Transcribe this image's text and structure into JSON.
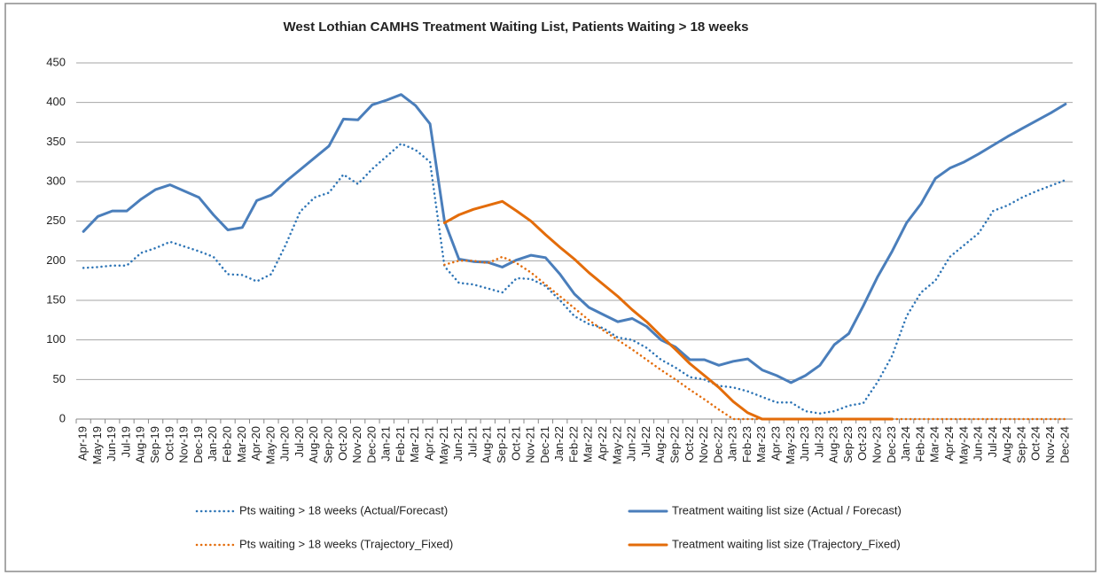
{
  "chart_data": {
    "type": "line",
    "title": "West Lothian CAMHS Treatment Waiting List, Patients Waiting > 18 weeks",
    "categories": [
      "Apr-19",
      "May-19",
      "Jun-19",
      "Jul-19",
      "Aug-19",
      "Sep-19",
      "Oct-19",
      "Nov-19",
      "Dec-19",
      "Jan-20",
      "Feb-20",
      "Mar-20",
      "Apr-20",
      "May-20",
      "Jun-20",
      "Jul-20",
      "Aug-20",
      "Sep-20",
      "Oct-20",
      "Nov-20",
      "Dec-20",
      "Jan-21",
      "Feb-21",
      "Mar-21",
      "Apr-21",
      "May-21",
      "Jun-21",
      "Jul-21",
      "Aug-21",
      "Sep-21",
      "Oct-21",
      "Nov-21",
      "Dec-21",
      "Jan-22",
      "Feb-22",
      "Mar-22",
      "Apr-22",
      "May-22",
      "Jun-22",
      "Jul-22",
      "Aug-22",
      "Sep-22",
      "Oct-22",
      "Nov-22",
      "Dec-22",
      "Jan-23",
      "Feb-23",
      "Mar-23",
      "Apr-23",
      "May-23",
      "Jun-23",
      "Jul-23",
      "Aug-23",
      "Sep-23",
      "Oct-23",
      "Nov-23",
      "Dec-23",
      "Jan-24",
      "Feb-24",
      "Mar-24",
      "Apr-24",
      "May-24",
      "Jun-24",
      "Jul-24",
      "Aug-24",
      "Sep-24",
      "Oct-24",
      "Nov-24",
      "Dec-24"
    ],
    "series": [
      {
        "name": "Pts waiting > 18 weeks (Actual/Forecast)",
        "color": "#2e75b6",
        "style": "dotted",
        "values": [
          191,
          192,
          194,
          194,
          210,
          216,
          224,
          218,
          212,
          205,
          183,
          182,
          174,
          183,
          220,
          262,
          280,
          286,
          309,
          297,
          316,
          332,
          348,
          340,
          325,
          193,
          172,
          170,
          165,
          160,
          178,
          177,
          168,
          150,
          130,
          120,
          115,
          103,
          100,
          90,
          75,
          65,
          53,
          50,
          42,
          40,
          35,
          28,
          21,
          21,
          10,
          7,
          10,
          17,
          20,
          47,
          80,
          130,
          160,
          175,
          205,
          220,
          235,
          263,
          270,
          280,
          288,
          295,
          302
        ]
      },
      {
        "name": "Treatment waiting list size (Actual / Forecast)",
        "color": "#4a7ebb",
        "style": "solid",
        "values": [
          237,
          256,
          263,
          263,
          278,
          290,
          296,
          288,
          280,
          258,
          239,
          242,
          276,
          283,
          300,
          315,
          330,
          345,
          379,
          378,
          397,
          403,
          410,
          396,
          373,
          250,
          202,
          199,
          198,
          192,
          201,
          207,
          204,
          183,
          158,
          141,
          132,
          123,
          127,
          117,
          100,
          91,
          75,
          75,
          68,
          73,
          76,
          62,
          55,
          46,
          55,
          68,
          94,
          108,
          143,
          180,
          212,
          248,
          272,
          304,
          317,
          325,
          335,
          346,
          357,
          367,
          377,
          387,
          398
        ]
      },
      {
        "name": "Pts waiting > 18 weeks (Trajectory_Fixed)",
        "color": "#e36c0a",
        "style": "dotted",
        "values": [
          null,
          null,
          null,
          null,
          null,
          null,
          null,
          null,
          null,
          null,
          null,
          null,
          null,
          null,
          null,
          null,
          null,
          null,
          null,
          null,
          null,
          null,
          null,
          null,
          null,
          195,
          200,
          200,
          197,
          205,
          197,
          185,
          170,
          155,
          140,
          125,
          112,
          100,
          88,
          75,
          62,
          50,
          37,
          25,
          12,
          0,
          0,
          0,
          0,
          0,
          0,
          0,
          0,
          0,
          0,
          0,
          0,
          0,
          0,
          0,
          0,
          0,
          0,
          0,
          0,
          0,
          0,
          0,
          0
        ]
      },
      {
        "name": "Treatment waiting list size (Trajectory_Fixed)",
        "color": "#e36c0a",
        "style": "solid",
        "values": [
          null,
          null,
          null,
          null,
          null,
          null,
          null,
          null,
          null,
          null,
          null,
          null,
          null,
          null,
          null,
          null,
          null,
          null,
          null,
          null,
          null,
          null,
          null,
          null,
          null,
          248,
          258,
          265,
          270,
          275,
          263,
          250,
          233,
          217,
          202,
          185,
          170,
          155,
          138,
          123,
          105,
          88,
          70,
          55,
          40,
          22,
          8,
          0,
          0,
          0,
          0,
          0,
          0,
          0,
          0,
          0,
          0,
          null,
          null,
          null,
          null,
          null,
          null,
          null,
          null,
          null,
          null,
          null,
          null
        ]
      }
    ],
    "ylim": [
      0,
      450
    ],
    "yticks": [
      0,
      50,
      100,
      150,
      200,
      250,
      300,
      350,
      400,
      450
    ],
    "grid": true
  }
}
